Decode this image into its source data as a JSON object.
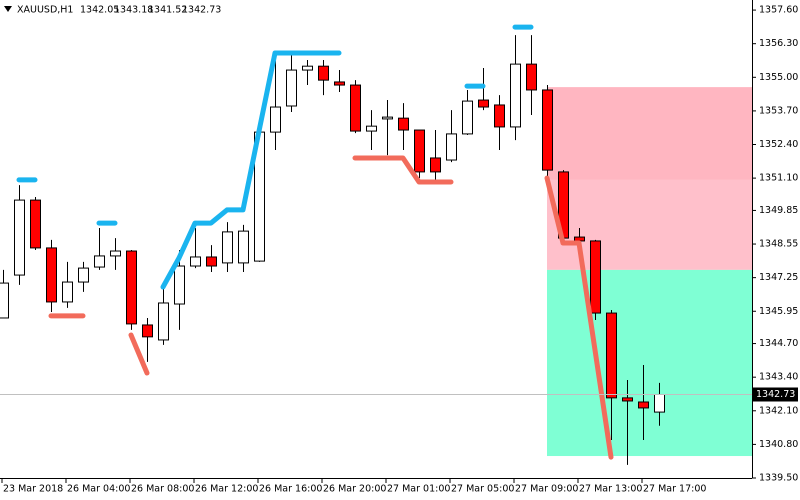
{
  "chart_data": {
    "type": "candlestick",
    "symbol": "XAUUSD,H1",
    "categories": [
      "23 Mar 2018",
      null,
      null,
      null,
      "26 Mar 04:00",
      null,
      null,
      null,
      "26 Mar 08:00",
      null,
      null,
      null,
      "26 Mar 12:00",
      null,
      null,
      null,
      "26 Mar 16:00",
      null,
      null,
      null,
      "26 Mar 20:00",
      null,
      null,
      null,
      "27 Mar 01:00",
      null,
      null,
      null,
      "27 Mar 05:00",
      null,
      null,
      null,
      "27 Mar 09:00",
      null,
      null,
      null,
      "27 Mar 13:00",
      null,
      null,
      null,
      "27 Mar 17:00",
      null
    ],
    "open": [
      1345.69,
      1347.35,
      1350.25,
      1348.4,
      1346.31,
      1347.08,
      1347.66,
      1348.09,
      1348.28,
      1345.42,
      1344.84,
      1346.23,
      1347.7,
      1348.05,
      1347.82,
      1347.82,
      1347.89,
      1352.88,
      1353.89,
      1355.28,
      1355.43,
      1354.82,
      1354.7,
      1352.92,
      1353.39,
      1353.42,
      1352.96,
      1351.88,
      1351.8,
      1352.81,
      1354.12,
      1353.93,
      1353.08,
      1355.51,
      1354.51,
      1351.34,
      1348.82,
      1348.67,
      1345.88,
      1342.6,
      1342.44,
      1342.05
    ],
    "high": [
      1347.55,
      1350.83,
      1350.37,
      1348.71,
      1347.86,
      1347.86,
      1349.17,
      1348.78,
      1348.32,
      1345.69,
      1346.97,
      1348.32,
      1349.17,
      1348.51,
      1349.4,
      1349.29,
      1353.27,
      1355.86,
      1355.86,
      1355.67,
      1355.67,
      1355.28,
      1354.89,
      1353.73,
      1354.12,
      1354.0,
      1352.96,
      1352.96,
      1353.73,
      1354.51,
      1355.36,
      1354.31,
      1356.63,
      1356.63,
      1354.7,
      1351.41,
      1349.17,
      1348.71,
      1346.0,
      1343.29,
      1343.87,
      1343.18
    ],
    "low": [
      1345.69,
      1346.97,
      1348.32,
      1345.92,
      1346.08,
      1346.7,
      1347.55,
      1347.55,
      1345.23,
      1343.99,
      1344.65,
      1345.23,
      1347.62,
      1347.47,
      1347.47,
      1347.47,
      1347.86,
      1352.19,
      1353.66,
      1354.7,
      1354.31,
      1354.43,
      1352.84,
      1352.19,
      1351.99,
      1352.19,
      1351.1,
      1351.03,
      1351.72,
      1352.77,
      1353.73,
      1352.19,
      1352.57,
      1353.54,
      1351.03,
      1348.71,
      1348.51,
      1345.61,
      1340.97,
      1340.01,
      1340.97,
      1341.52
    ],
    "close": [
      1347.04,
      1350.25,
      1348.4,
      1346.31,
      1347.08,
      1347.62,
      1348.09,
      1348.28,
      1345.46,
      1344.96,
      1346.27,
      1347.7,
      1348.05,
      1347.7,
      1349.02,
      1349.05,
      1352.88,
      1353.85,
      1355.28,
      1355.43,
      1354.89,
      1354.7,
      1352.92,
      1353.11,
      1353.46,
      1352.96,
      1351.34,
      1351.34,
      1352.81,
      1354.08,
      1353.85,
      1353.08,
      1355.51,
      1354.51,
      1351.41,
      1348.78,
      1348.67,
      1345.88,
      1342.6,
      1342.48,
      1342.21,
      1342.73
    ],
    "up_color": "#ffffff",
    "down_color": "#ff0000",
    "series": [
      {
        "color": "#1ab4ef",
        "values": [
          null,
          1351.03,
          1351.03,
          null,
          null,
          null,
          1349.36,
          1349.36,
          null,
          null,
          1346.89,
          1348.01,
          1349.36,
          1349.36,
          1349.87,
          1349.87,
          1352.92,
          1355.94,
          1355.94,
          1355.94,
          1355.94,
          1355.94,
          null,
          null,
          null,
          null,
          null,
          null,
          null,
          1354.66,
          1354.66,
          null,
          1356.94,
          1356.94,
          null,
          null,
          null,
          null,
          null,
          null,
          null,
          null
        ]
      },
      {
        "color": "#f26b5b",
        "values": [
          null,
          null,
          null,
          1345.77,
          1345.77,
          1345.77,
          null,
          null,
          1345.03,
          1343.56,
          null,
          null,
          null,
          null,
          null,
          null,
          null,
          null,
          null,
          null,
          null,
          null,
          1351.88,
          1351.88,
          1351.88,
          1351.88,
          1350.95,
          1350.95,
          1350.95,
          null,
          null,
          null,
          null,
          null,
          1351.1,
          1348.59,
          1348.59,
          1344.45,
          1340.31,
          null,
          null,
          null
        ]
      }
    ],
    "zones": [
      {
        "from": 1351.03,
        "to": 1354.62,
        "color": "#ffb6c1"
      },
      {
        "from": 1347.55,
        "to": 1351.03,
        "color": "#ffc0cb"
      },
      {
        "from": 1340.35,
        "to": 1347.55,
        "color": "#7fffd4"
      }
    ],
    "ylim": [
      1339.5,
      1357.99
    ],
    "yticks": [
      {
        "value": 1339.5,
        "label": "1339.50"
      },
      {
        "value": 1340.8,
        "label": "1340.80"
      },
      {
        "value": 1342.1,
        "label": "1342.10"
      },
      {
        "value": 1343.4,
        "label": "1343.40"
      },
      {
        "value": 1344.7,
        "label": "1344.70"
      },
      1345.95,
      1347.25,
      1348.55,
      1349.85,
      {
        "value": 1351.1,
        "label": "1351.10"
      },
      {
        "value": 1352.4,
        "label": "1352.40"
      },
      {
        "value": 1353.7,
        "label": "1353.70"
      },
      {
        "value": 1355,
        "label": "1355.00"
      },
      {
        "value": 1356.3,
        "label": "1356.30"
      },
      {
        "value": 1357.6,
        "label": "1357.60"
      }
    ]
  }
}
